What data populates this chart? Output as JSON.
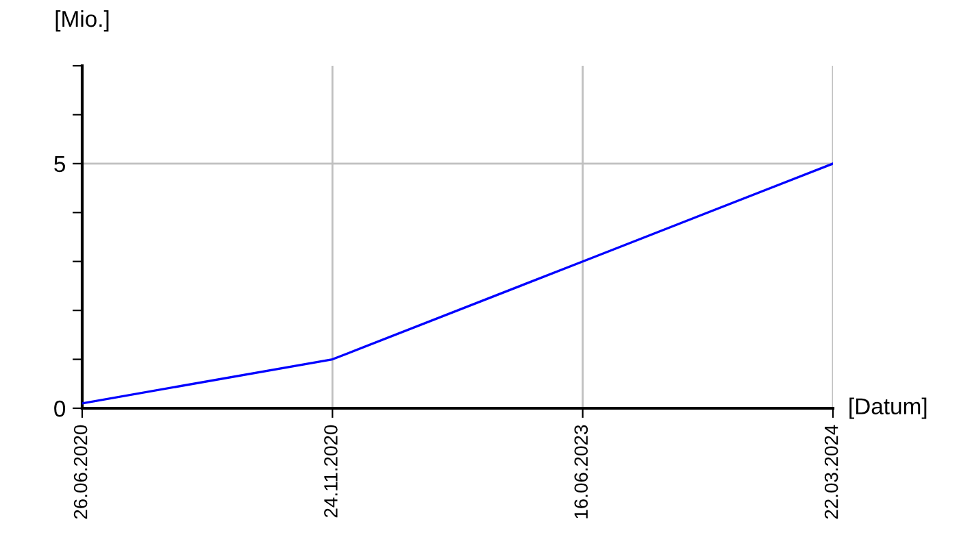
{
  "chart_data": {
    "type": "line",
    "xlabel": "[Datum]",
    "ylabel": "[Mio.]",
    "categories": [
      "26.06.2020",
      "24.11.2020",
      "16.06.2023",
      "22.03.2024"
    ],
    "series": [
      {
        "color": "#0000ff",
        "values": [
          0.1,
          1.0,
          3.0,
          5.0
        ]
      }
    ],
    "ylim": [
      0,
      7
    ],
    "yticks": [
      0,
      {
        "value": 1,
        "label": null
      },
      {
        "value": 2,
        "label": null
      },
      {
        "value": 3,
        "label": null
      },
      {
        "value": 4,
        "label": null
      },
      5,
      {
        "value": 6,
        "label": null
      },
      {
        "value": 7,
        "label": null
      }
    ],
    "grid": true,
    "marker": "none",
    "line_style": "solid"
  }
}
